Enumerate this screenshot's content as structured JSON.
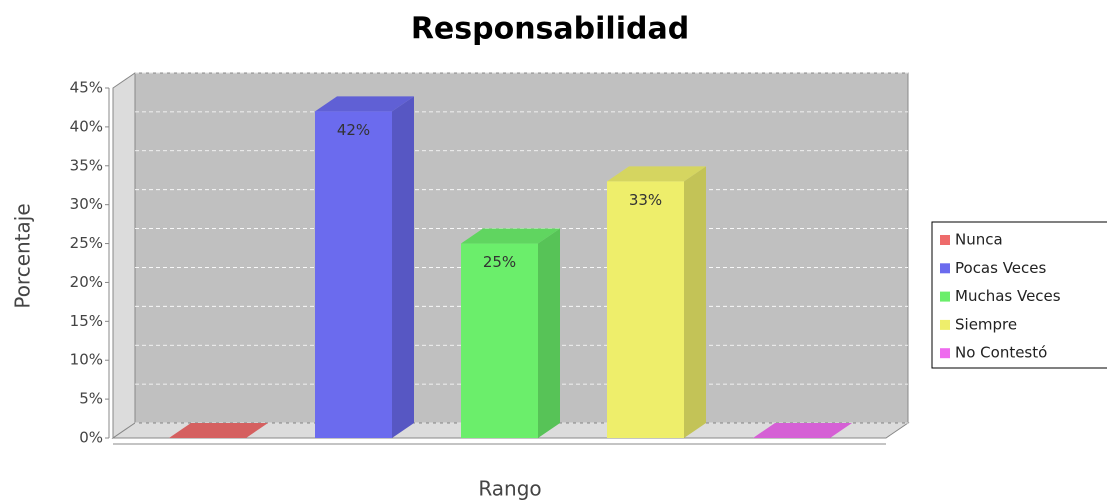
{
  "chart_data": {
    "type": "bar3d",
    "title": "Responsabilidad",
    "x_label": "Rango",
    "y_label": "Porcentaje",
    "categories": [
      null
    ],
    "series": [
      {
        "name": "Nunca",
        "color": "#ee6b6b",
        "values": [
          0
        ],
        "value_labels": [
          null
        ]
      },
      {
        "name": "Pocas Veces",
        "color": "#6b6bee",
        "values": [
          42
        ],
        "value_labels": [
          "42%"
        ]
      },
      {
        "name": "Muchas Veces",
        "color": "#6bee6b",
        "values": [
          25
        ],
        "value_labels": [
          "25%"
        ]
      },
      {
        "name": "Siempre",
        "color": "#eeee6b",
        "values": [
          33
        ],
        "value_labels": [
          "33%"
        ]
      },
      {
        "name": "No Contestó",
        "color": "#ee6bee",
        "values": [
          0
        ],
        "value_labels": [
          null
        ]
      }
    ],
    "ylim": [
      0,
      45
    ],
    "yticks": [
      {
        "value": 0,
        "label": "0%"
      },
      {
        "value": 5,
        "label": "5%"
      },
      {
        "value": 10,
        "label": "10%"
      },
      {
        "value": 15,
        "label": "15%"
      },
      {
        "value": 20,
        "label": "20%"
      },
      {
        "value": 25,
        "label": "25%"
      },
      {
        "value": 30,
        "label": "30%"
      },
      {
        "value": 35,
        "label": "35%"
      },
      {
        "value": 40,
        "label": "40%"
      },
      {
        "value": 45,
        "label": "45%"
      }
    ],
    "grid": true,
    "legend": "right"
  }
}
